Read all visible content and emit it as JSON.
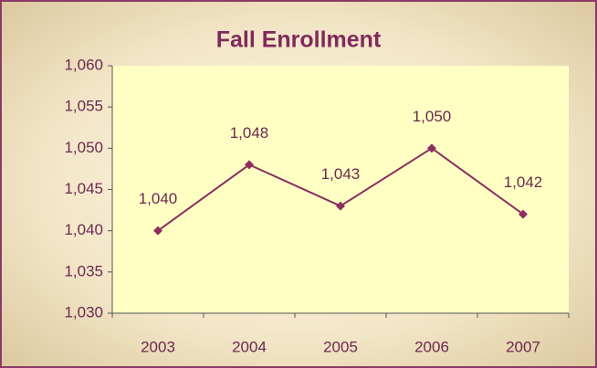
{
  "chart_data": {
    "type": "line",
    "title": "Fall Enrollment",
    "categories": [
      "2003",
      "2004",
      "2005",
      "2006",
      "2007"
    ],
    "series": [
      {
        "name": "Fall Enrollment",
        "color": "#8b2f5e",
        "values": [
          1040,
          1048,
          1043,
          1050,
          1042
        ],
        "value_labels": [
          "1,040",
          "1,048",
          "1,043",
          "1,050",
          "1,042"
        ]
      }
    ],
    "ylim": [
      1030,
      1060
    ],
    "yticks": [
      {
        "value": 1030,
        "label": "1,030"
      },
      {
        "value": 1035,
        "label": "1,035"
      },
      {
        "value": 1040,
        "label": "1,040"
      },
      {
        "value": 1045,
        "label": "1,045"
      },
      {
        "value": 1050,
        "label": "1,050"
      },
      {
        "value": 1055,
        "label": "1,055"
      },
      {
        "value": 1060,
        "label": "1,060"
      }
    ],
    "grid": false
  }
}
